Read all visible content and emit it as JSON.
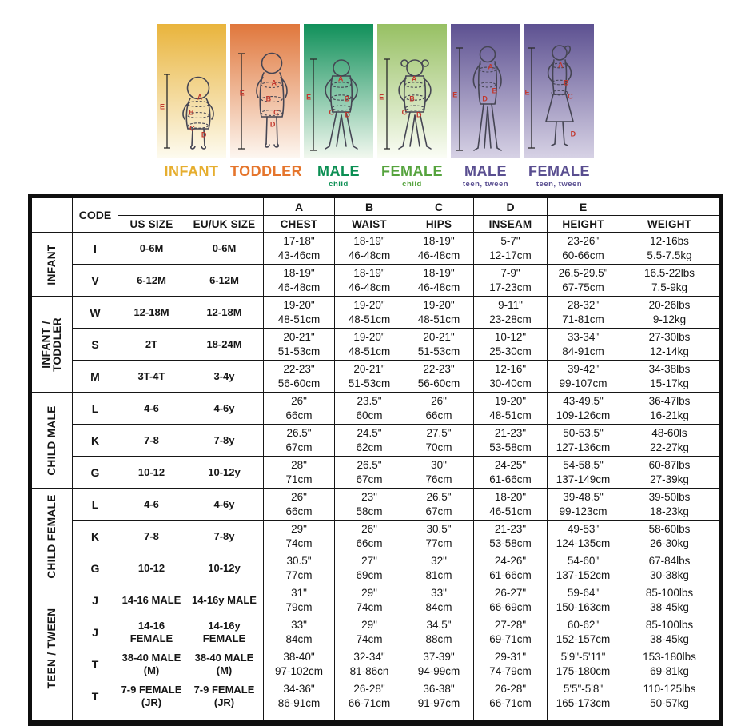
{
  "figures": {
    "marker_color": "#c2382e",
    "panels": [
      {
        "id": "infant",
        "label": "INFANT",
        "sublabel": "",
        "label_color": "#e6ae2f",
        "grad_top": "#e9b43c",
        "grad_bottom": "#fdfbf0",
        "figure": "baby",
        "markers": [
          {
            "t": "E",
            "x": 8,
            "y": 62
          },
          {
            "t": "A",
            "x": 62,
            "y": 55
          },
          {
            "t": "B",
            "x": 50,
            "y": 66
          },
          {
            "t": "C",
            "x": 51,
            "y": 78
          },
          {
            "t": "D",
            "x": 68,
            "y": 83
          }
        ]
      },
      {
        "id": "toddler",
        "label": "TODDLER",
        "sublabel": "",
        "label_color": "#e5752c",
        "grad_top": "#e0773c",
        "grad_bottom": "#fdf7f1",
        "figure": "toddler",
        "markers": [
          {
            "t": "E",
            "x": 17,
            "y": 52
          },
          {
            "t": "A",
            "x": 63,
            "y": 44
          },
          {
            "t": "B",
            "x": 55,
            "y": 56
          },
          {
            "t": "C",
            "x": 66,
            "y": 66
          },
          {
            "t": "D",
            "x": 61,
            "y": 75
          }
        ]
      },
      {
        "id": "male-child",
        "label": "MALE",
        "sublabel": "child",
        "label_color": "#0b8f53",
        "grad_top": "#10905a",
        "grad_bottom": "#f2f8ef",
        "figure": "boy",
        "markers": [
          {
            "t": "E",
            "x": 7,
            "y": 55
          },
          {
            "t": "A",
            "x": 53,
            "y": 41
          },
          {
            "t": "B",
            "x": 62,
            "y": 56
          },
          {
            "t": "C",
            "x": 40,
            "y": 66
          },
          {
            "t": "D",
            "x": 63,
            "y": 68
          }
        ]
      },
      {
        "id": "female-child",
        "label": "FEMALE",
        "sublabel": "child",
        "label_color": "#55a33d",
        "grad_top": "#97c063",
        "grad_bottom": "#fbfdf6",
        "figure": "girl",
        "markers": [
          {
            "t": "E",
            "x": 6,
            "y": 55
          },
          {
            "t": "A",
            "x": 53,
            "y": 41
          },
          {
            "t": "B",
            "x": 50,
            "y": 56
          },
          {
            "t": "C",
            "x": 39,
            "y": 66
          },
          {
            "t": "D",
            "x": 60,
            "y": 68
          }
        ]
      },
      {
        "id": "male-teen",
        "label": "MALE",
        "sublabel": "teen, tween",
        "label_color": "#594e90",
        "grad_top": "#5d5191",
        "grad_bottom": "#d7d2e5",
        "figure": "teenboy",
        "markers": [
          {
            "t": "E",
            "x": 6,
            "y": 53
          },
          {
            "t": "A",
            "x": 57,
            "y": 32
          },
          {
            "t": "B",
            "x": 63,
            "y": 50
          },
          {
            "t": "D",
            "x": 49,
            "y": 56
          }
        ]
      },
      {
        "id": "female-teen",
        "label": "FEMALE",
        "sublabel": "teen, tween",
        "label_color": "#594e90",
        "grad_top": "#5d5191",
        "grad_bottom": "#d7d2e5",
        "figure": "teengirl",
        "markers": [
          {
            "t": "E",
            "x": 4,
            "y": 51
          },
          {
            "t": "A",
            "x": 52,
            "y": 31
          },
          {
            "t": "B",
            "x": 60,
            "y": 44
          },
          {
            "t": "C",
            "x": 66,
            "y": 54
          },
          {
            "t": "D",
            "x": 70,
            "y": 82
          }
        ]
      }
    ]
  },
  "table": {
    "code_header": "CODE",
    "letters": [
      "A",
      "B",
      "C",
      "D",
      "E"
    ],
    "columns": [
      "US SIZE",
      "EU/UK SIZE",
      "CHEST",
      "WAIST",
      "HIPS",
      "INSEAM",
      "HEIGHT",
      "WEIGHT"
    ],
    "groups": [
      {
        "label_lines": [
          "INFANT"
        ],
        "rows": [
          {
            "code": "I",
            "us": [
              "0-6M"
            ],
            "eu": [
              "0-6M"
            ],
            "chest": [
              "17-18\"",
              "43-46cm"
            ],
            "waist": [
              "18-19\"",
              "46-48cm"
            ],
            "hips": [
              "18-19\"",
              "46-48cm"
            ],
            "inseam": [
              "5-7\"",
              "12-17cm"
            ],
            "height": [
              "23-26\"",
              "60-66cm"
            ],
            "weight": [
              "12-16bs",
              "5.5-7.5kg"
            ]
          },
          {
            "code": "V",
            "us": [
              "6-12M"
            ],
            "eu": [
              "6-12M"
            ],
            "chest": [
              "18-19\"",
              "46-48cm"
            ],
            "waist": [
              "18-19\"",
              "46-48cm"
            ],
            "hips": [
              "18-19\"",
              "46-48cm"
            ],
            "inseam": [
              "7-9\"",
              "17-23cm"
            ],
            "height": [
              "26.5-29.5\"",
              "67-75cm"
            ],
            "weight": [
              "16.5-22lbs",
              "7.5-9kg"
            ]
          }
        ]
      },
      {
        "label_lines": [
          "INFANT /",
          "TODDLER"
        ],
        "rows": [
          {
            "code": "W",
            "us": [
              "12-18M"
            ],
            "eu": [
              "12-18M"
            ],
            "chest": [
              "19-20\"",
              "48-51cm"
            ],
            "waist": [
              "19-20\"",
              "48-51cm"
            ],
            "hips": [
              "19-20\"",
              "48-51cm"
            ],
            "inseam": [
              "9-11\"",
              "23-28cm"
            ],
            "height": [
              "28-32\"",
              "71-81cm"
            ],
            "weight": [
              "20-26lbs",
              "9-12kg"
            ]
          },
          {
            "code": "S",
            "us": [
              "2T"
            ],
            "eu": [
              "18-24M"
            ],
            "chest": [
              "20-21\"",
              "51-53cm"
            ],
            "waist": [
              "19-20\"",
              "48-51cm"
            ],
            "hips": [
              "20-21\"",
              "51-53cm"
            ],
            "inseam": [
              "10-12\"",
              "25-30cm"
            ],
            "height": [
              "33-34\"",
              "84-91cm"
            ],
            "weight": [
              "27-30lbs",
              "12-14kg"
            ]
          },
          {
            "code": "M",
            "us": [
              "3T-4T"
            ],
            "eu": [
              "3-4y"
            ],
            "chest": [
              "22-23\"",
              "56-60cm"
            ],
            "waist": [
              "20-21\"",
              "51-53cm"
            ],
            "hips": [
              "22-23\"",
              "56-60cm"
            ],
            "inseam": [
              "12-16\"",
              "30-40cm"
            ],
            "height": [
              "39-42\"",
              "99-107cm"
            ],
            "weight": [
              "34-38lbs",
              "15-17kg"
            ]
          }
        ]
      },
      {
        "label_lines": [
          "CHILD MALE"
        ],
        "rows": [
          {
            "code": "L",
            "us": [
              "4-6"
            ],
            "eu": [
              "4-6y"
            ],
            "chest": [
              "26\"",
              "66cm"
            ],
            "waist": [
              "23.5\"",
              "60cm"
            ],
            "hips": [
              "26\"",
              "66cm"
            ],
            "inseam": [
              "19-20\"",
              "48-51cm"
            ],
            "height": [
              "43-49.5\"",
              "109-126cm"
            ],
            "weight": [
              "36-47lbs",
              "16-21kg"
            ]
          },
          {
            "code": "K",
            "us": [
              "7-8"
            ],
            "eu": [
              "7-8y"
            ],
            "chest": [
              "26.5\"",
              "67cm"
            ],
            "waist": [
              "24.5\"",
              "62cm"
            ],
            "hips": [
              "27.5\"",
              "70cm"
            ],
            "inseam": [
              "21-23\"",
              "53-58cm"
            ],
            "height": [
              "50-53.5\"",
              "127-136cm"
            ],
            "weight": [
              "48-60ls",
              "22-27kg"
            ]
          },
          {
            "code": "G",
            "us": [
              "10-12"
            ],
            "eu": [
              "10-12y"
            ],
            "chest": [
              "28\"",
              "71cm"
            ],
            "waist": [
              "26.5\"",
              "67cm"
            ],
            "hips": [
              "30\"",
              "76cm"
            ],
            "inseam": [
              "24-25\"",
              "61-66cm"
            ],
            "height": [
              "54-58.5\"",
              "137-149cm"
            ],
            "weight": [
              "60-87lbs",
              "27-39kg"
            ]
          }
        ]
      },
      {
        "label_lines": [
          "CHILD FEMALE"
        ],
        "rows": [
          {
            "code": "L",
            "us": [
              "4-6"
            ],
            "eu": [
              "4-6y"
            ],
            "chest": [
              "26\"",
              "66cm"
            ],
            "waist": [
              "23\"",
              "58cm"
            ],
            "hips": [
              "26.5\"",
              "67cm"
            ],
            "inseam": [
              "18-20\"",
              "46-51cm"
            ],
            "height": [
              "39-48.5\"",
              "99-123cm"
            ],
            "weight": [
              "39-50lbs",
              "18-23kg"
            ]
          },
          {
            "code": "K",
            "us": [
              "7-8"
            ],
            "eu": [
              "7-8y"
            ],
            "chest": [
              "29\"",
              "74cm"
            ],
            "waist": [
              "26\"",
              "66cm"
            ],
            "hips": [
              "30.5\"",
              "77cm"
            ],
            "inseam": [
              "21-23\"",
              "53-58cm"
            ],
            "height": [
              "49-53\"",
              "124-135cm"
            ],
            "weight": [
              "58-60lbs",
              "26-30kg"
            ]
          },
          {
            "code": "G",
            "us": [
              "10-12"
            ],
            "eu": [
              "10-12y"
            ],
            "chest": [
              "30.5\"",
              "77cm"
            ],
            "waist": [
              "27\"",
              "69cm"
            ],
            "hips": [
              "32\"",
              "81cm"
            ],
            "inseam": [
              "24-26\"",
              "61-66cm"
            ],
            "height": [
              "54-60\"",
              "137-152cm"
            ],
            "weight": [
              "67-84lbs",
              "30-38kg"
            ]
          }
        ]
      },
      {
        "label_lines": [
          "TEEN / TWEEN"
        ],
        "rows": [
          {
            "code": "J",
            "us": [
              "14-16 MALE"
            ],
            "eu": [
              "14-16y MALE"
            ],
            "chest": [
              "31\"",
              "79cm"
            ],
            "waist": [
              "29\"",
              "74cm"
            ],
            "hips": [
              "33\"",
              "84cm"
            ],
            "inseam": [
              "26-27\"",
              "66-69cm"
            ],
            "height": [
              "59-64\"",
              "150-163cm"
            ],
            "weight": [
              "85-100lbs",
              "38-45kg"
            ]
          },
          {
            "code": "J",
            "us": [
              "14-16",
              "FEMALE"
            ],
            "eu": [
              "14-16y",
              "FEMALE"
            ],
            "chest": [
              "33\"",
              "84cm"
            ],
            "waist": [
              "29\"",
              "74cm"
            ],
            "hips": [
              "34.5\"",
              "88cm"
            ],
            "inseam": [
              "27-28\"",
              "69-71cm"
            ],
            "height": [
              "60-62\"",
              "152-157cm"
            ],
            "weight": [
              "85-100lbs",
              "38-45kg"
            ]
          },
          {
            "code": "T",
            "us": [
              "38-40 MALE",
              "(M)"
            ],
            "eu": [
              "38-40 MALE",
              "(M)"
            ],
            "chest": [
              "38-40\"",
              "97-102cm"
            ],
            "waist": [
              "32-34\"",
              "81-86cn"
            ],
            "hips": [
              "37-39\"",
              "94-99cm"
            ],
            "inseam": [
              "29-31\"",
              "74-79cm"
            ],
            "height": [
              "5'9\"-5'11\"",
              "175-180cm"
            ],
            "weight": [
              "153-180lbs",
              "69-81kg"
            ]
          },
          {
            "code": "T",
            "us": [
              "7-9 FEMALE",
              "(JR)"
            ],
            "eu": [
              "7-9 FEMALE",
              "(JR)"
            ],
            "chest": [
              "34-36\"",
              "86-91cm"
            ],
            "waist": [
              "26-28\"",
              "66-71cm"
            ],
            "hips": [
              "36-38\"",
              "91-97cm"
            ],
            "inseam": [
              "26-28\"",
              "66-71cm"
            ],
            "height": [
              "5'5\"-5'8\"",
              "165-173cm"
            ],
            "weight": [
              "110-125lbs",
              "50-57kg"
            ]
          }
        ]
      }
    ]
  }
}
